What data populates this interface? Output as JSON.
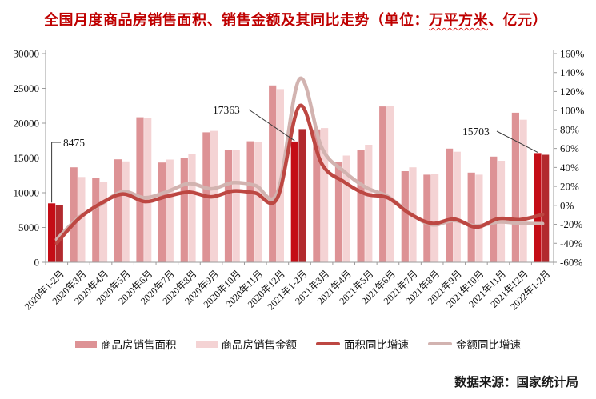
{
  "title": {
    "prefix": "全国月度商品房销售面积、销售金额及其同比走势（单位：",
    "squiggle": "万平方米",
    "suffix": "、亿元）"
  },
  "source": "数据来源：国家统计局",
  "chart_data": {
    "type": "bar",
    "subtype": "combo-bar-line-dual-axis",
    "title": "全国月度商品房销售面积、销售金额及其同比走势（单位：万平方米、亿元）",
    "categories": [
      "2020年1-2月",
      "2020年3月",
      "2020年4月",
      "2020年5月",
      "2020年6月",
      "2020年7月",
      "2020年8月",
      "2020年9月",
      "2020年10月",
      "2020年11月",
      "2020年12月",
      "2021年1-2月",
      "2021年3月",
      "2021年4月",
      "2021年5月",
      "2021年6月",
      "2021年7月",
      "2021年8月",
      "2021年9月",
      "2021年10月",
      "2021年11月",
      "2021年12月",
      "2022年1-2月"
    ],
    "bar_series": [
      {
        "name": "商品房销售面积",
        "color": "#dd9295",
        "highlight_color": "#c40d16",
        "highlight_indices": [
          0,
          11,
          22
        ],
        "values": [
          8475,
          13650,
          12150,
          14800,
          20850,
          14350,
          15000,
          18685,
          16180,
          17400,
          25430,
          17363,
          19100,
          14460,
          16100,
          22400,
          13100,
          12600,
          16350,
          12900,
          15200,
          21500,
          15703
        ]
      },
      {
        "name": "商品房销售金额",
        "color": "#f4d3d4",
        "highlight_color": "#b22a2e",
        "highlight_indices": [
          0,
          11,
          22
        ],
        "values": [
          8203,
          12270,
          11600,
          14500,
          20800,
          14770,
          15615,
          18900,
          16100,
          17250,
          24900,
          19151,
          19300,
          15350,
          16900,
          22500,
          13650,
          12700,
          15900,
          12600,
          14600,
          20500,
          15459
        ]
      }
    ],
    "line_series": [
      {
        "name": "面积同比增速",
        "color": "#bd4742",
        "axis": "right",
        "values_pct": [
          -39.9,
          -14.1,
          2,
          12,
          4,
          9.5,
          14,
          9,
          15.3,
          13,
          8,
          104.9,
          44,
          25,
          12,
          8,
          -9,
          -19,
          -14.5,
          -23,
          -14,
          -15,
          -9.6
        ]
      },
      {
        "name": "金额同比增速",
        "color": "#d2b3b0",
        "axis": "right",
        "values_pct": [
          -35.9,
          -13,
          1,
          14.5,
          8,
          14.5,
          23,
          17.5,
          24,
          21,
          13.5,
          133.4,
          61,
          36,
          19,
          9.3,
          -8.5,
          -20.5,
          -16,
          -21.7,
          -17.5,
          -19,
          -19.3
        ]
      }
    ],
    "y_left": {
      "min": 0,
      "max": 30000,
      "tick_step": 5000,
      "tick_labels": [
        "0",
        "5000",
        "10000",
        "15000",
        "20000",
        "25000",
        "30000"
      ]
    },
    "y_right": {
      "min": -60,
      "max": 160,
      "tick_step": 20,
      "tick_labels": [
        "-60%",
        "-40%",
        "-20%",
        "0%",
        "20%",
        "40%",
        "60%",
        "80%",
        "100%",
        "120%",
        "140%",
        "160%"
      ]
    },
    "annotations": [
      {
        "label": "8475",
        "series": "商品房销售面积",
        "category_index": 0
      },
      {
        "label": "17363",
        "series": "商品房销售面积",
        "category_index": 11
      },
      {
        "label": "15703",
        "series": "商品房销售面积",
        "category_index": 22
      }
    ],
    "grid": false,
    "legend_position": "bottom"
  },
  "legend": {
    "items": [
      {
        "label": "商品房销售面积",
        "swatch": "bar"
      },
      {
        "label": "商品房销售金额",
        "swatch": "bar"
      },
      {
        "label": "面积同比增速",
        "swatch": "line"
      },
      {
        "label": "金额同比增速",
        "swatch": "line"
      }
    ]
  }
}
